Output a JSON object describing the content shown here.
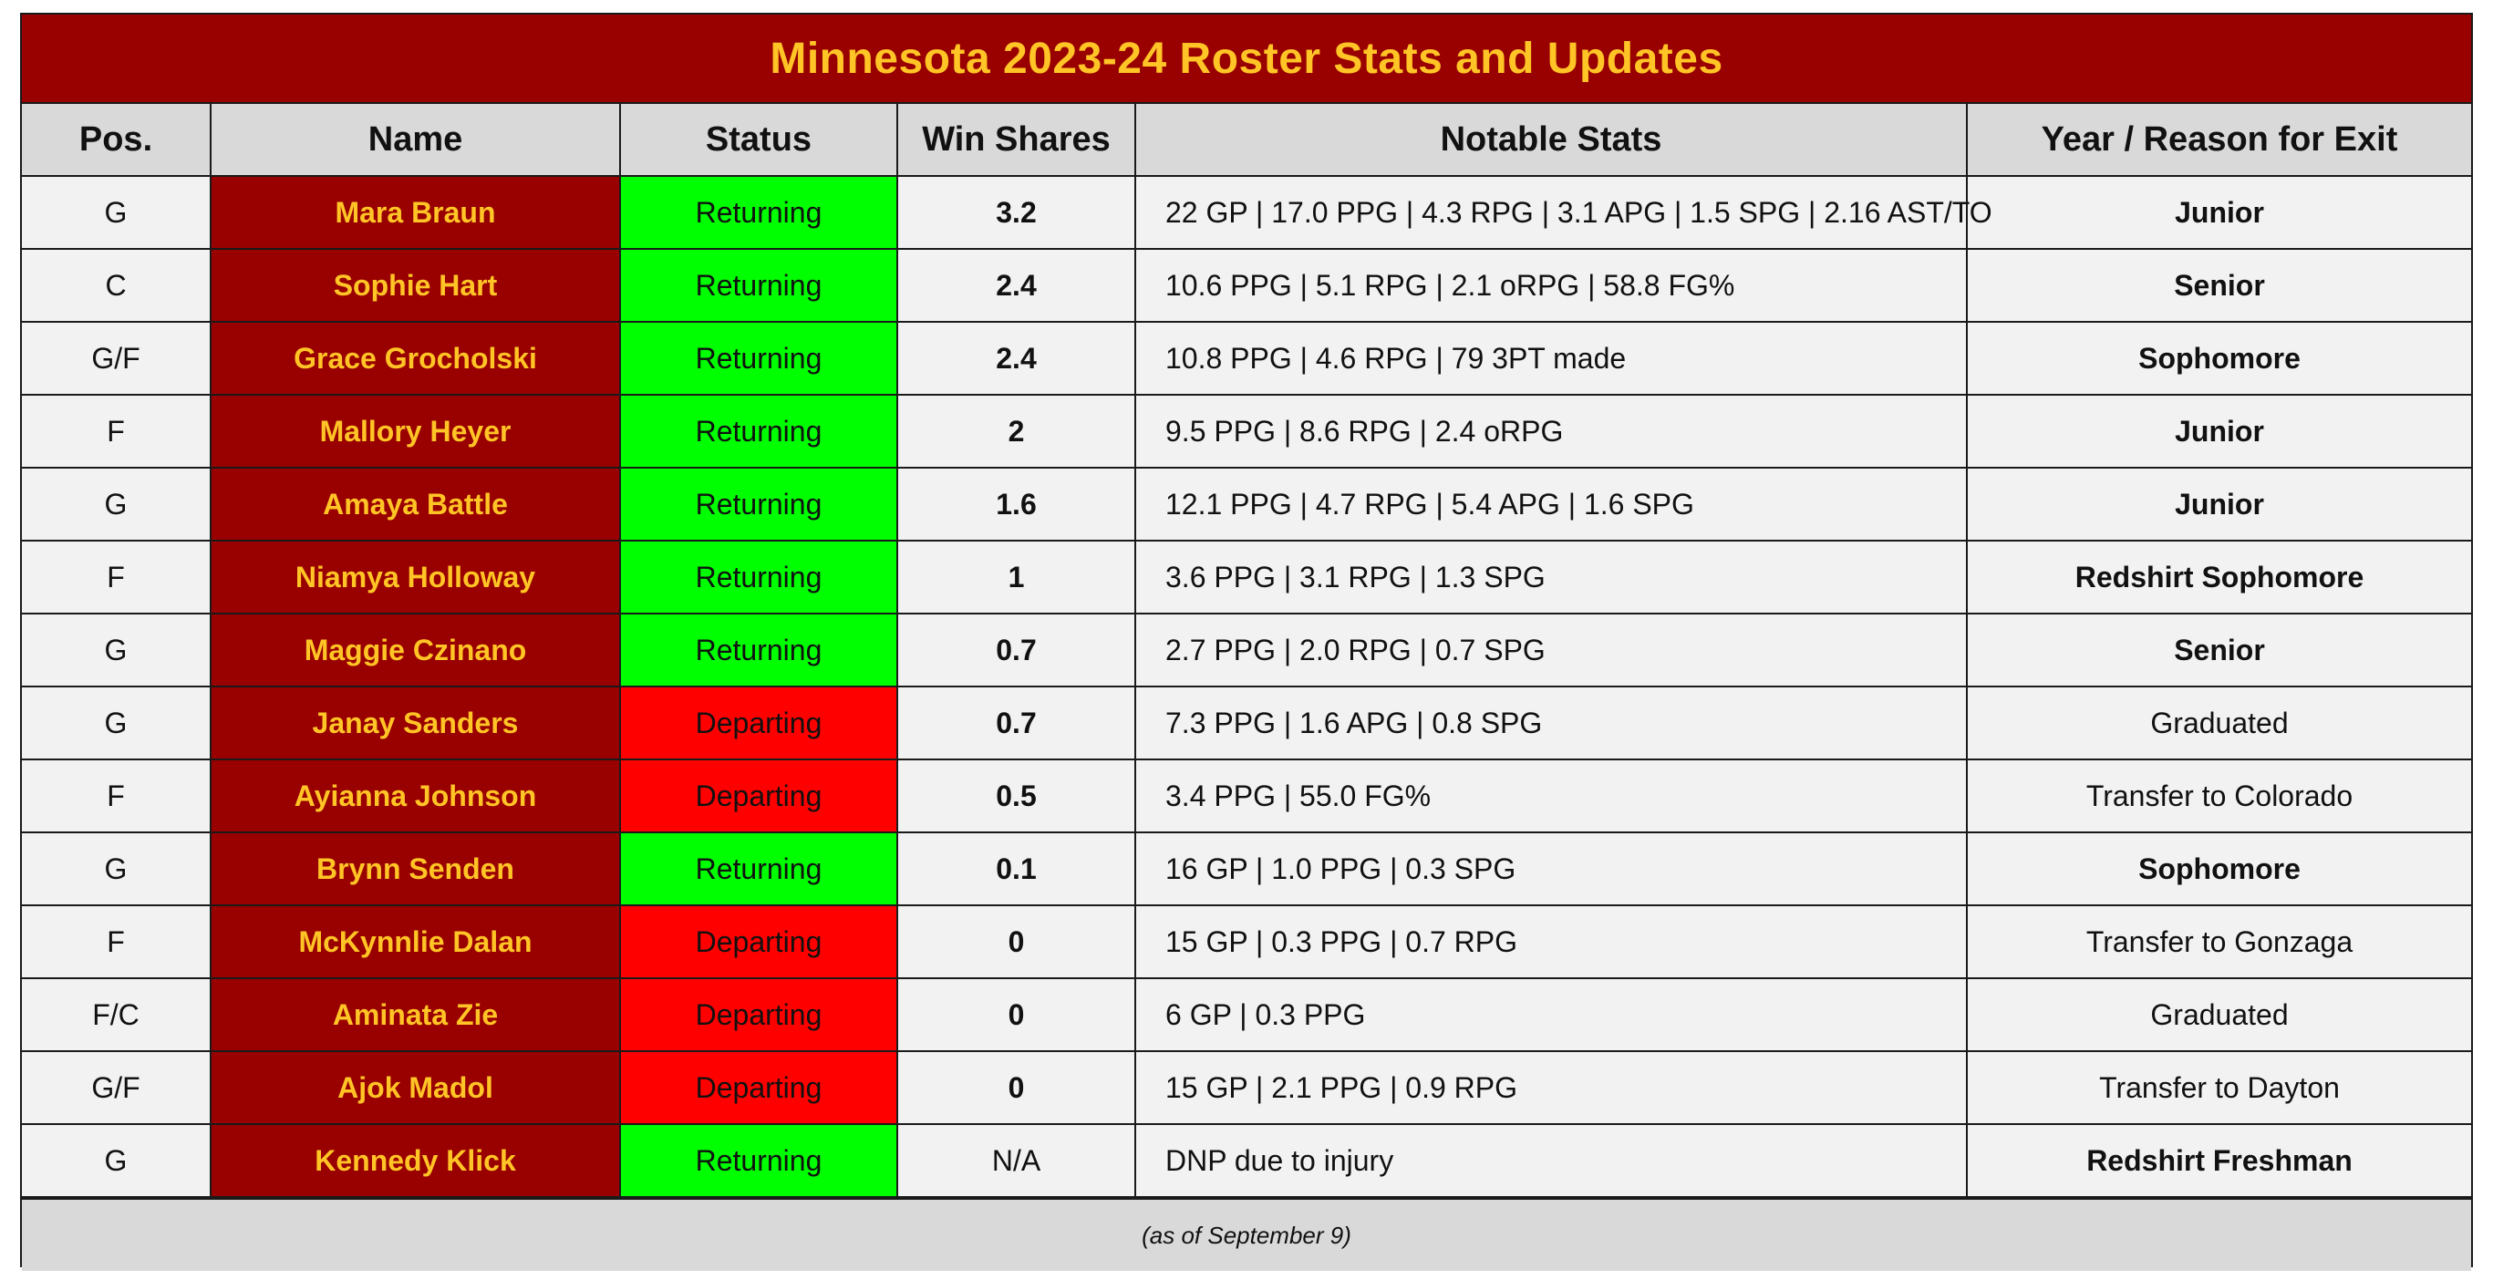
{
  "title": "Minnesota 2023-24 Roster Stats and Updates",
  "columns": [
    "Pos.",
    "Name",
    "Status",
    "Win Shares",
    "Notable Stats",
    "Year / Reason for Exit"
  ],
  "colors": {
    "title_bg": "#990000",
    "title_text": "#ffc425",
    "header_bg": "#d9d9d9",
    "returning": "#00ff00",
    "departing": "#ff0000",
    "row_bg": "#f2f2f2"
  },
  "rows": [
    {
      "pos": "G",
      "name": "Mara Braun",
      "status": "Returning",
      "ws": "3.2",
      "stats": "22 GP | 17.0 PPG | 4.3 RPG | 3.1 APG | 1.5 SPG | 2.16 AST/TO",
      "exit": "Junior",
      "exit_bold": true
    },
    {
      "pos": "C",
      "name": "Sophie Hart",
      "status": "Returning",
      "ws": "2.4",
      "stats": "10.6 PPG | 5.1 RPG | 2.1 oRPG | 58.8 FG%",
      "exit": "Senior",
      "exit_bold": true
    },
    {
      "pos": "G/F",
      "name": "Grace Grocholski",
      "status": "Returning",
      "ws": "2.4",
      "stats": "10.8 PPG | 4.6 RPG | 79 3PT made",
      "exit": "Sophomore",
      "exit_bold": true
    },
    {
      "pos": "F",
      "name": "Mallory Heyer",
      "status": "Returning",
      "ws": "2",
      "stats": "9.5 PPG | 8.6 RPG | 2.4 oRPG",
      "exit": "Junior",
      "exit_bold": true
    },
    {
      "pos": "G",
      "name": "Amaya Battle",
      "status": "Returning",
      "ws": "1.6",
      "stats": "12.1 PPG | 4.7 RPG | 5.4 APG | 1.6 SPG",
      "exit": "Junior",
      "exit_bold": true
    },
    {
      "pos": "F",
      "name": "Niamya Holloway",
      "status": "Returning",
      "ws": "1",
      "stats": "3.6 PPG | 3.1 RPG | 1.3 SPG",
      "exit": "Redshirt Sophomore",
      "exit_bold": true
    },
    {
      "pos": "G",
      "name": "Maggie Czinano",
      "status": "Returning",
      "ws": "0.7",
      "stats": "2.7 PPG | 2.0 RPG | 0.7 SPG",
      "exit": "Senior",
      "exit_bold": true
    },
    {
      "pos": "G",
      "name": "Janay Sanders",
      "status": "Departing",
      "ws": "0.7",
      "stats": "7.3 PPG | 1.6 APG | 0.8 SPG",
      "exit": "Graduated",
      "exit_bold": false
    },
    {
      "pos": "F",
      "name": "Ayianna Johnson",
      "status": "Departing",
      "ws": "0.5",
      "stats": "3.4 PPG | 55.0 FG%",
      "exit": "Transfer to Colorado",
      "exit_bold": false
    },
    {
      "pos": "G",
      "name": "Brynn Senden",
      "status": "Returning",
      "ws": "0.1",
      "stats": "16 GP | 1.0 PPG | 0.3 SPG",
      "exit": "Sophomore",
      "exit_bold": true
    },
    {
      "pos": "F",
      "name": "McKynnlie Dalan",
      "status": "Departing",
      "ws": "0",
      "stats": "15 GP | 0.3 PPG | 0.7 RPG",
      "exit": "Transfer to Gonzaga",
      "exit_bold": false
    },
    {
      "pos": "F/C",
      "name": "Aminata Zie",
      "status": "Departing",
      "ws": "0",
      "stats": "6 GP | 0.3 PPG",
      "exit": "Graduated",
      "exit_bold": false
    },
    {
      "pos": "G/F",
      "name": "Ajok Madol",
      "status": "Departing",
      "ws": "0",
      "stats": "15 GP | 2.1 PPG | 0.9 RPG",
      "exit": "Transfer to Dayton",
      "exit_bold": false
    },
    {
      "pos": "G",
      "name": "Kennedy Klick",
      "status": "Returning",
      "ws": "N/A",
      "stats": "DNP due to injury",
      "exit": "Redshirt Freshman",
      "exit_bold": true
    }
  ],
  "footer": "(as of September 9)"
}
